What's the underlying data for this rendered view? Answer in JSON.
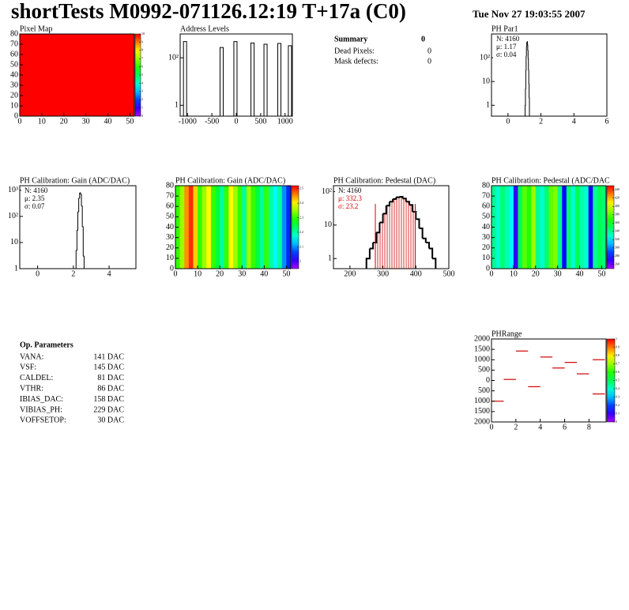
{
  "header": {
    "title": "shortTests M0992-071126.12:19 T+17a (C0)",
    "date": "Tue Nov 27 19:03:55 2007"
  },
  "summary": {
    "title": "Summary",
    "value": 0,
    "rows": [
      [
        "Dead Pixels:",
        0
      ],
      [
        "Mask defects:",
        0
      ]
    ]
  },
  "op_parameters": {
    "title": "Op. Parameters",
    "rows": [
      [
        "VANA:",
        "141 DAC"
      ],
      [
        "VSF:",
        "145 DAC"
      ],
      [
        "CALDEL:",
        "81 DAC"
      ],
      [
        "VTHR:",
        "86 DAC"
      ],
      [
        "IBIAS_DAC:",
        "158 DAC"
      ],
      [
        "VIBIAS_PH:",
        "229 DAC"
      ],
      [
        "VOFFSETOP:",
        "30 DAC"
      ]
    ]
  },
  "chart_data": [
    {
      "type": "heatmap",
      "title": "Pixel Map",
      "xlim": [
        0,
        52
      ],
      "ylim": [
        0,
        80
      ],
      "xticks": [
        0,
        10,
        20,
        30,
        40,
        50
      ],
      "yticks": [
        0,
        10,
        20,
        30,
        40,
        50,
        60,
        70,
        80
      ],
      "zlim": [
        0,
        10
      ],
      "zticks": [
        0,
        1,
        2,
        3,
        4,
        5,
        6,
        7,
        8,
        9,
        10
      ],
      "values": [
        10
      ]
    },
    {
      "type": "spike",
      "title": "Address Levels",
      "log_y": true,
      "xlim": [
        -1150,
        1150
      ],
      "ylim": [
        0.35,
        1000
      ],
      "xticks": [
        -1000,
        -500,
        0,
        500,
        1000
      ],
      "yticks": [
        1,
        {
          "value": 100,
          "label": "10²"
        }
      ],
      "x": [
        -1050,
        -300,
        -17,
        333,
        600,
        883,
        1100
      ],
      "values": [
        480,
        270,
        480,
        420,
        370,
        400,
        320
      ],
      "color": "#000000"
    },
    {
      "type": "histogram",
      "title": "PH Par1",
      "log_y": true,
      "xlim": [
        -1,
        6
      ],
      "ylim": [
        0.35,
        1000
      ],
      "xticks": [
        0,
        2,
        4,
        6
      ],
      "yticks": [
        1,
        10,
        {
          "value": 100,
          "label": "10²"
        }
      ],
      "bins": [
        1.04,
        1.06,
        1.08,
        1.1,
        1.12,
        1.14,
        1.16,
        1.18,
        1.2,
        1.22,
        1.24,
        1.26,
        1.28,
        1.3
      ],
      "values": [
        1,
        5,
        30,
        120,
        300,
        450,
        480,
        350,
        200,
        90,
        30,
        8,
        2
      ],
      "stats": [
        "N: 4160",
        "μ: 1.17",
        "σ: 0.04"
      ],
      "color": "#000000"
    },
    {
      "type": "histogram",
      "title": "PH Calibration: Gain (ADC/DAC)",
      "log_y": true,
      "xlim": [
        -1,
        5.5
      ],
      "ylim": [
        1,
        1500
      ],
      "xticks": [
        0,
        2,
        4
      ],
      "yticks": [
        1,
        10,
        {
          "value": 100,
          "label": "10²"
        },
        {
          "value": 1000,
          "label": "10³"
        }
      ],
      "bins": [
        2.1,
        2.15,
        2.2,
        2.25,
        2.3,
        2.35,
        2.4,
        2.45,
        2.5,
        2.55,
        2.6
      ],
      "values": [
        1,
        5,
        30,
        150,
        500,
        800,
        700,
        250,
        40,
        3
      ],
      "stats": [
        "N: 4160",
        "μ: 2.35",
        "σ: 0.07"
      ],
      "color": "#000000"
    },
    {
      "type": "heatmap",
      "title": "PH Calibration: Gain (ADC/DAC)",
      "xlim": [
        0,
        52
      ],
      "ylim": [
        0,
        80
      ],
      "xticks": [
        0,
        10,
        20,
        30,
        40,
        50
      ],
      "yticks": [
        0,
        10,
        20,
        30,
        40,
        50,
        60,
        70,
        80
      ],
      "zlim": [
        1.95,
        2.52
      ],
      "zticks": [
        2,
        2.1,
        2.2,
        2.3,
        2.4,
        2.5
      ],
      "values": [
        2.3,
        2.35,
        2.45,
        2.5,
        2.42,
        2.3,
        2.35,
        2.4,
        2.3,
        2.25,
        2.2,
        2.3,
        2.4,
        2.35,
        2.3,
        2.2,
        2.35,
        2.3,
        2.25,
        2.2,
        2.3,
        2.2,
        2.15,
        2.2,
        2.1,
        2.05
      ]
    },
    {
      "type": "histogram",
      "title": "PH Calibration: Pedestal (DAC)",
      "log_y": true,
      "xlim": [
        150,
        500
      ],
      "ylim": [
        0.5,
        150
      ],
      "xticks": [
        200,
        300,
        400,
        500
      ],
      "yticks": [
        1,
        10,
        {
          "value": 100,
          "label": "10²"
        }
      ],
      "bins": [
        250,
        260,
        270,
        280,
        290,
        300,
        310,
        320,
        330,
        340,
        350,
        360,
        370,
        380,
        390,
        400,
        410,
        420,
        430,
        440,
        450,
        460
      ],
      "values": [
        1,
        2,
        3,
        6,
        12,
        22,
        38,
        50,
        60,
        68,
        70,
        62,
        50,
        40,
        25,
        15,
        8,
        4,
        3,
        2,
        1
      ],
      "stats": [
        "N: 4160"
      ],
      "fit_stats": [
        "μ: 332.3",
        "σ: 23.2"
      ],
      "fit_range": [
        277,
        398
      ],
      "color": "#000000",
      "fit_color": "#d00000"
    },
    {
      "type": "heatmap",
      "title": "PH Calibration: Pedestal (ADC/DAC",
      "xlim": [
        0,
        52
      ],
      "ylim": [
        0,
        80
      ],
      "xticks": [
        0,
        10,
        20,
        30,
        40,
        50
      ],
      "yticks": [
        0,
        10,
        20,
        30,
        40,
        50,
        60,
        70,
        80
      ],
      "zlim": [
        250,
        450
      ],
      "zticks": [
        260,
        280,
        300,
        320,
        340,
        360,
        380,
        400,
        420,
        440
      ],
      "values": [
        340,
        330,
        345,
        335,
        320,
        270,
        350,
        380,
        370,
        390,
        340,
        330,
        345,
        380,
        385,
        340,
        280,
        345,
        330,
        350,
        335,
        330,
        275,
        340,
        350,
        345
      ]
    },
    {
      "type": "segments",
      "title": "PHRange",
      "xlim": [
        0,
        9.4
      ],
      "ylim": [
        -2000,
        2000
      ],
      "xticks": [
        0,
        2,
        4,
        6,
        8
      ],
      "yticks": [
        {
          "value": -2000,
          "label": "2000"
        },
        {
          "value": -1500,
          "label": "1500"
        },
        {
          "value": -1000,
          "label": "1000"
        },
        {
          "value": -500,
          "label": "500"
        },
        0,
        500,
        1000,
        1500,
        2000
      ],
      "zlim": [
        0,
        1
      ],
      "zticks": [
        0,
        0.1,
        0.2,
        0.3,
        0.4,
        0.5,
        0.6,
        0.7,
        0.8,
        0.9,
        1
      ],
      "x": [
        0.5,
        1.5,
        2.5,
        3.5,
        4.5,
        5.5,
        6.5,
        7.5,
        8.8,
        8.8
      ],
      "values": [
        -1000,
        50,
        1420,
        -300,
        1130,
        600,
        870,
        320,
        1000,
        -650
      ],
      "color": "#d00000"
    }
  ]
}
